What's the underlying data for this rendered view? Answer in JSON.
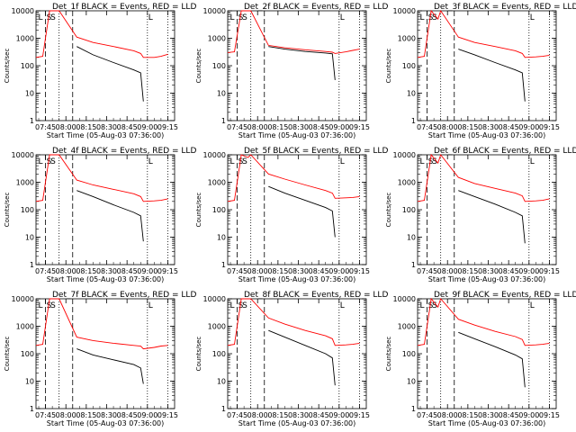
{
  "figure": {
    "xlabel": "Start Time (05-Aug-03 07:36:00)",
    "ylabel": "Counts/sec",
    "x_ticks": [
      "07:45",
      "08:00",
      "08:15",
      "08:30",
      "08:45",
      "09:00",
      "09:15"
    ],
    "y_ticks": [
      "1",
      "10",
      "100",
      "1000",
      "10000"
    ],
    "colors": {
      "events": "#000000",
      "lld": "#ff0000",
      "axes": "#000000"
    }
  },
  "chart_data": [
    {
      "type": "line",
      "title": "Det_1f BLACK = Events, RED = LLD",
      "x": [
        "07:38",
        "07:43",
        "07:48",
        "07:53",
        "07:55",
        "08:08",
        "08:20",
        "08:35",
        "08:50",
        "08:55",
        "08:57",
        "09:05",
        "09:10",
        "09:15"
      ],
      "ylim": [
        1,
        10000
      ],
      "log_y": true,
      "series": [
        {
          "values": [
            null,
            null,
            null,
            null,
            null,
            500,
            250,
            130,
            70,
            55,
            5,
            null,
            null,
            null
          ]
        },
        {
          "values": [
            200,
            220,
            10000,
            10000,
            10000,
            1100,
            700,
            500,
            350,
            280,
            200,
            200,
            220,
            260
          ]
        }
      ],
      "markers": [
        "L",
        "S",
        "S",
        "L"
      ]
    },
    {
      "type": "line",
      "title": "Det_2f BLACK = Events, RED = LLD",
      "x": [
        "07:38",
        "07:43",
        "07:48",
        "07:53",
        "07:55",
        "08:08",
        "08:20",
        "08:35",
        "08:50",
        "08:55",
        "08:57",
        "09:05",
        "09:10",
        "09:15"
      ],
      "ylim": [
        1,
        10000
      ],
      "log_y": true,
      "series": [
        {
          "values": [
            null,
            null,
            null,
            null,
            null,
            500,
            400,
            330,
            290,
            270,
            30,
            null,
            null,
            null
          ]
        },
        {
          "values": [
            300,
            320,
            10000,
            10000,
            10000,
            550,
            450,
            380,
            330,
            310,
            280,
            320,
            360,
            400
          ]
        }
      ],
      "markers": [
        "L",
        "S",
        "S",
        "L"
      ]
    },
    {
      "type": "line",
      "title": "Det_3f BLACK = Events, RED = LLD",
      "x": [
        "07:38",
        "07:43",
        "07:48",
        "07:53",
        "07:55",
        "08:08",
        "08:20",
        "08:35",
        "08:50",
        "08:55",
        "08:57",
        "09:05",
        "09:10",
        "09:15"
      ],
      "ylim": [
        1,
        10000
      ],
      "log_y": true,
      "series": [
        {
          "values": [
            null,
            null,
            null,
            null,
            null,
            400,
            250,
            130,
            70,
            55,
            5,
            null,
            null,
            null
          ]
        },
        {
          "values": [
            200,
            220,
            10000,
            5000,
            10000,
            1100,
            700,
            500,
            350,
            280,
            200,
            210,
            220,
            240
          ]
        }
      ],
      "markers": [
        "L",
        "S",
        "S",
        "L"
      ]
    },
    {
      "type": "line",
      "title": "Det_4f BLACK = Events, RED = LLD",
      "x": [
        "07:38",
        "07:43",
        "07:48",
        "07:53",
        "07:55",
        "08:08",
        "08:20",
        "08:35",
        "08:50",
        "08:55",
        "08:57",
        "09:05",
        "09:10",
        "09:15"
      ],
      "ylim": [
        1,
        10000
      ],
      "log_y": true,
      "series": [
        {
          "values": [
            null,
            null,
            null,
            null,
            null,
            500,
            300,
            150,
            80,
            60,
            7,
            null,
            null,
            null
          ]
        },
        {
          "values": [
            200,
            220,
            10000,
            10000,
            10000,
            1200,
            800,
            550,
            380,
            300,
            200,
            210,
            220,
            250
          ]
        }
      ],
      "markers": [
        "L",
        "S",
        "S",
        "L"
      ]
    },
    {
      "type": "line",
      "title": "Det_5f BLACK = Events, RED = LLD",
      "x": [
        "07:38",
        "07:43",
        "07:48",
        "07:53",
        "07:55",
        "08:08",
        "08:20",
        "08:35",
        "08:50",
        "08:55",
        "08:57",
        "09:05",
        "09:10",
        "09:15"
      ],
      "ylim": [
        1,
        10000
      ],
      "log_y": true,
      "series": [
        {
          "values": [
            null,
            null,
            null,
            null,
            null,
            700,
            400,
            220,
            120,
            90,
            10,
            null,
            null,
            null
          ]
        },
        {
          "values": [
            200,
            220,
            10000,
            8000,
            10000,
            2000,
            1300,
            800,
            500,
            400,
            260,
            270,
            280,
            300
          ]
        }
      ],
      "markers": [
        "L",
        "S",
        "S",
        "L"
      ]
    },
    {
      "type": "line",
      "title": "Det_6f BLACK = Events, RED = LLD",
      "x": [
        "07:38",
        "07:43",
        "07:48",
        "07:53",
        "07:55",
        "08:08",
        "08:20",
        "08:35",
        "08:50",
        "08:55",
        "08:57",
        "09:05",
        "09:10",
        "09:15"
      ],
      "ylim": [
        1,
        10000
      ],
      "log_y": true,
      "series": [
        {
          "values": [
            null,
            null,
            null,
            null,
            null,
            500,
            300,
            160,
            80,
            60,
            6,
            null,
            null,
            null
          ]
        },
        {
          "values": [
            200,
            220,
            10000,
            5000,
            10000,
            1500,
            900,
            600,
            400,
            320,
            200,
            210,
            220,
            250
          ]
        }
      ],
      "markers": [
        "L",
        "S",
        "S",
        "L"
      ]
    },
    {
      "type": "line",
      "title": "Det_7f BLACK = Events, RED = LLD",
      "x": [
        "07:38",
        "07:43",
        "07:48",
        "07:53",
        "07:55",
        "08:08",
        "08:20",
        "08:35",
        "08:50",
        "08:55",
        "08:57",
        "09:05",
        "09:10",
        "09:15"
      ],
      "ylim": [
        1,
        10000
      ],
      "log_y": true,
      "series": [
        {
          "values": [
            null,
            null,
            null,
            null,
            null,
            150,
            90,
            60,
            40,
            30,
            8,
            null,
            null,
            null
          ]
        },
        {
          "values": [
            200,
            220,
            10000,
            10000,
            10000,
            400,
            300,
            240,
            200,
            190,
            150,
            170,
            190,
            200
          ]
        }
      ],
      "markers": [
        "L",
        "S",
        "S",
        "L"
      ]
    },
    {
      "type": "line",
      "title": "Det_8f BLACK = Events, RED = LLD",
      "x": [
        "07:38",
        "07:43",
        "07:48",
        "07:53",
        "07:55",
        "08:08",
        "08:20",
        "08:35",
        "08:50",
        "08:55",
        "08:57",
        "09:05",
        "09:10",
        "09:15"
      ],
      "ylim": [
        1,
        10000
      ],
      "log_y": true,
      "series": [
        {
          "values": [
            null,
            null,
            null,
            null,
            null,
            700,
            400,
            200,
            100,
            70,
            7,
            null,
            null,
            null
          ]
        },
        {
          "values": [
            200,
            220,
            10000,
            10000,
            10000,
            2000,
            1200,
            700,
            450,
            350,
            200,
            210,
            220,
            240
          ]
        }
      ],
      "markers": [
        "L",
        "S",
        "S",
        "L"
      ]
    },
    {
      "type": "line",
      "title": "Det_9f BLACK = Events, RED = LLD",
      "x": [
        "07:38",
        "07:43",
        "07:48",
        "07:53",
        "07:55",
        "08:08",
        "08:20",
        "08:35",
        "08:50",
        "08:55",
        "08:57",
        "09:05",
        "09:10",
        "09:15"
      ],
      "ylim": [
        1,
        10000
      ],
      "log_y": true,
      "series": [
        {
          "values": [
            null,
            null,
            null,
            null,
            null,
            600,
            350,
            180,
            90,
            65,
            6,
            null,
            null,
            null
          ]
        },
        {
          "values": [
            200,
            220,
            10000,
            5000,
            10000,
            1800,
            1100,
            650,
            420,
            330,
            200,
            210,
            220,
            240
          ]
        }
      ],
      "markers": [
        "L",
        "S",
        "S",
        "L"
      ]
    }
  ]
}
